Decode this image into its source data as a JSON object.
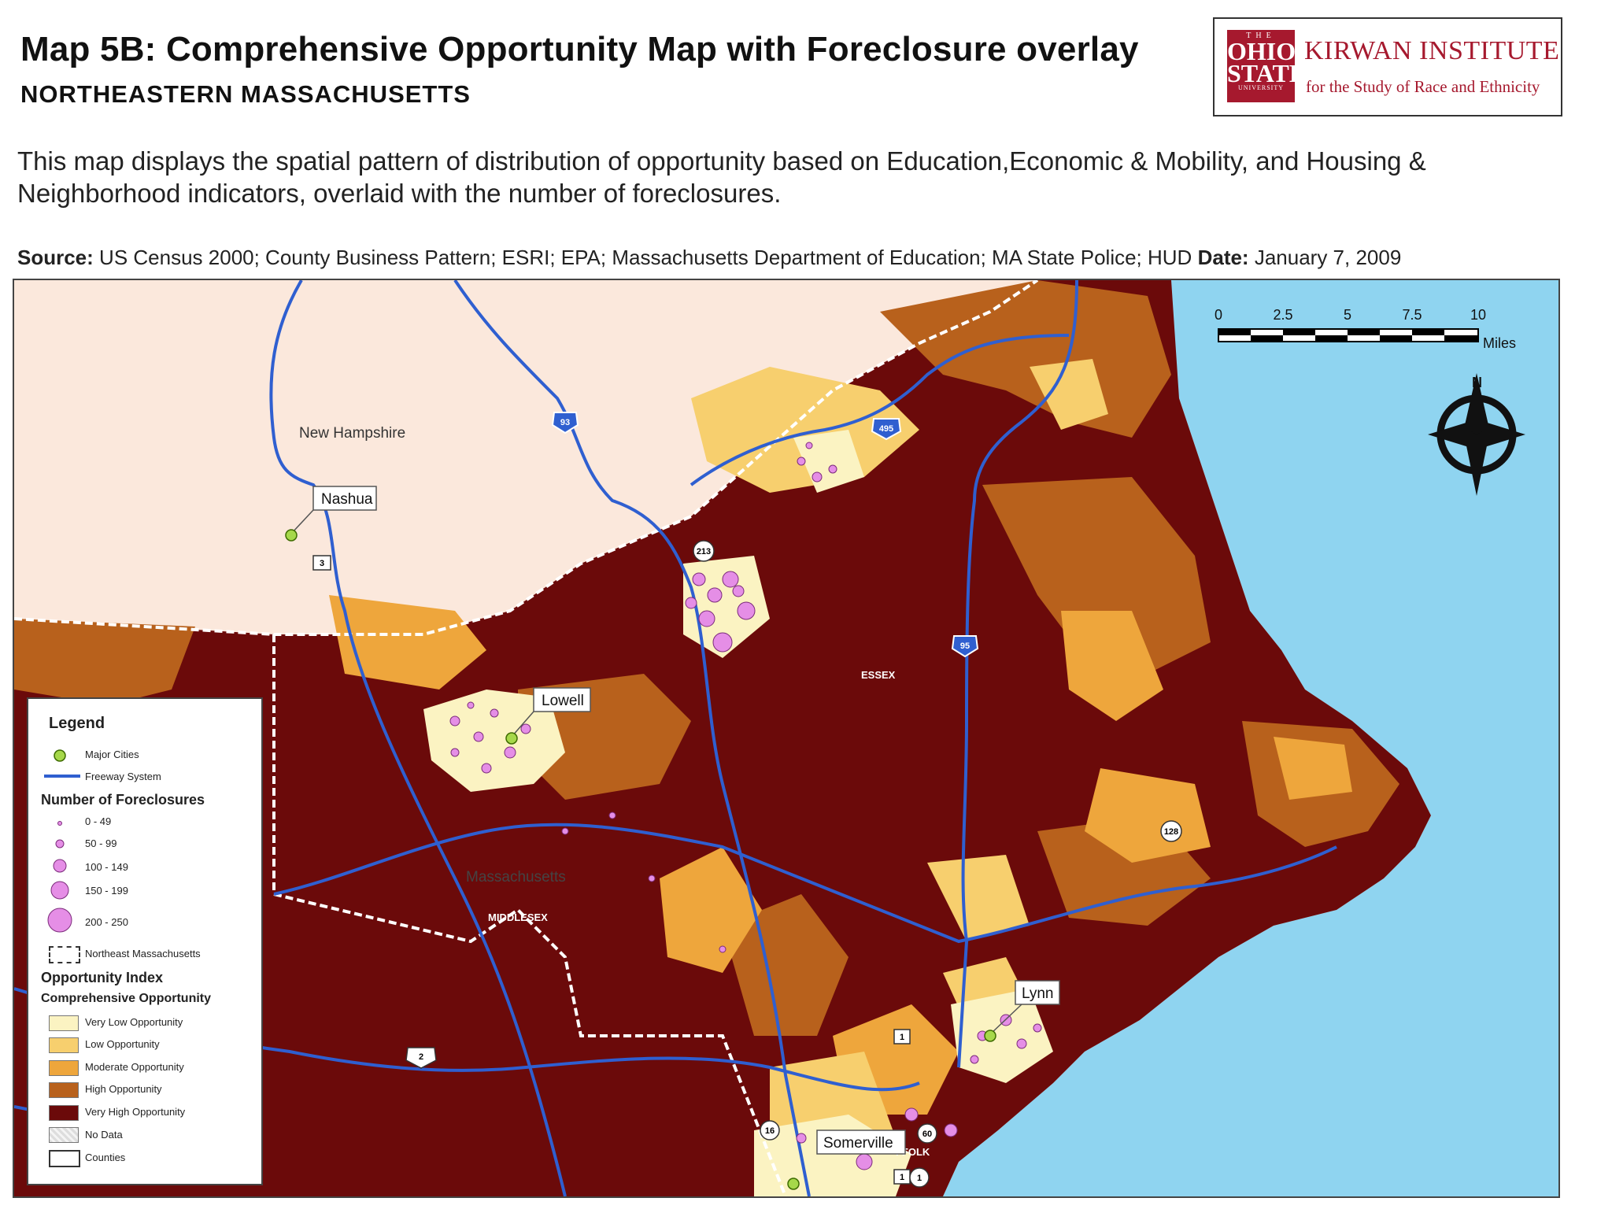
{
  "header": {
    "title": "Map 5B: Comprehensive Opportunity Map with Foreclosure overlay",
    "subtitle": "NORTHEASTERN MASSACHUSETTS",
    "description": "This map displays the spatial pattern of distribution of opportunity based on Education,Economic & Mobility, and Housing & Neighborhood indicators, overlaid with the number of foreclosures.",
    "source_label": "Source:",
    "source_text": "US Census 2000; County Business Pattern; ESRI; EPA; Massachusetts Department of Education; MA State Police; HUD",
    "date_label": "Date:",
    "date_text": "January 7, 2009"
  },
  "logo": {
    "seal_top": "THE",
    "seal_line1": "OHIO",
    "seal_line2": "STATE",
    "seal_bottom": "UNIVERSITY",
    "name": "KIRWAN INSTITUTE",
    "tagline": "for the Study of Race and Ethnicity"
  },
  "scale_bar": {
    "ticks": [
      "0",
      "2.5",
      "5",
      "7.5",
      "10"
    ],
    "unit": "Miles"
  },
  "north_arrow": {
    "label": "N",
    "icon": "north-arrow-icon"
  },
  "map_labels": {
    "state_nh": "New Hampshire",
    "state_ma": "Massachusetts",
    "county_essex": "ESSEX",
    "county_middlesex": "MIDDLESEX",
    "county_suffolk": "FFOLK"
  },
  "cities": [
    {
      "name": "Nashua"
    },
    {
      "name": "Lowell"
    },
    {
      "name": "Lynn"
    },
    {
      "name": "Somerville"
    }
  ],
  "highway_shields": [
    "93",
    "495",
    "213",
    "3",
    "95",
    "128",
    "1",
    "2",
    "16",
    "60",
    "1",
    "1"
  ],
  "legend": {
    "title": "Legend",
    "major_cities": "Major Cities",
    "freeway": "Freeway System",
    "foreclosures_title": "Number of Foreclosures",
    "foreclosure_classes": [
      "0 - 49",
      "50 - 99",
      "100 - 149",
      "150 - 199",
      "200 - 250"
    ],
    "northeast_ma": "Northeast Massachusetts",
    "opportunity_title": "Opportunity Index",
    "opportunity_subtitle": "Comprehensive Opportunity",
    "opportunity_classes": [
      {
        "label": "Very Low Opportunity",
        "color": "#fbf3c2"
      },
      {
        "label": "Low Opportunity",
        "color": "#f7cf6e"
      },
      {
        "label": "Moderate Opportunity",
        "color": "#eea63c"
      },
      {
        "label": "High Opportunity",
        "color": "#b8611c"
      },
      {
        "label": "Very High Opportunity",
        "color": "#6b0a0a"
      }
    ],
    "no_data": "No Data",
    "counties": "Counties"
  },
  "colors": {
    "water": "#8fd4f0",
    "new_hampshire": "#fbe8dc",
    "freeway": "#2f5fd0",
    "city_marker": "#a6d84a",
    "foreclosure_dot": "#e58ee6"
  }
}
